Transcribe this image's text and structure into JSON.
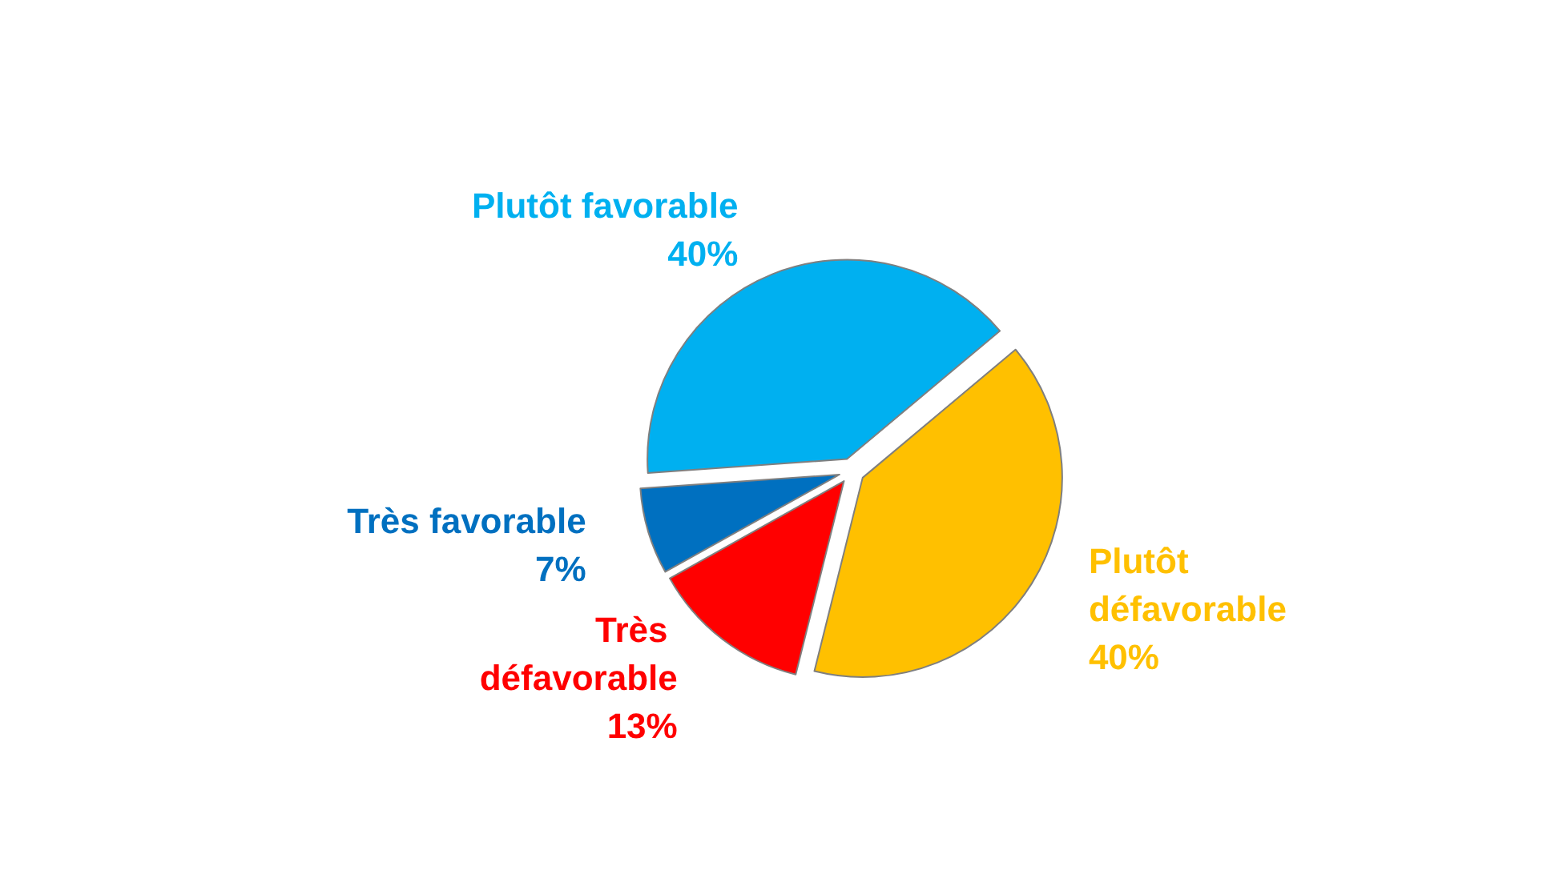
{
  "chart_data": {
    "type": "pie",
    "categories": [
      "Plutôt défavorable",
      "Très défavorable",
      "Très favorable",
      "Plutôt favorable"
    ],
    "values": [
      40,
      13,
      7,
      40
    ],
    "colors": [
      "#ffc000",
      "#ff0000",
      "#0070c0",
      "#00b0f0"
    ],
    "value_labels": [
      "40%",
      "13%",
      "7%",
      "40%"
    ],
    "legend": false
  }
}
